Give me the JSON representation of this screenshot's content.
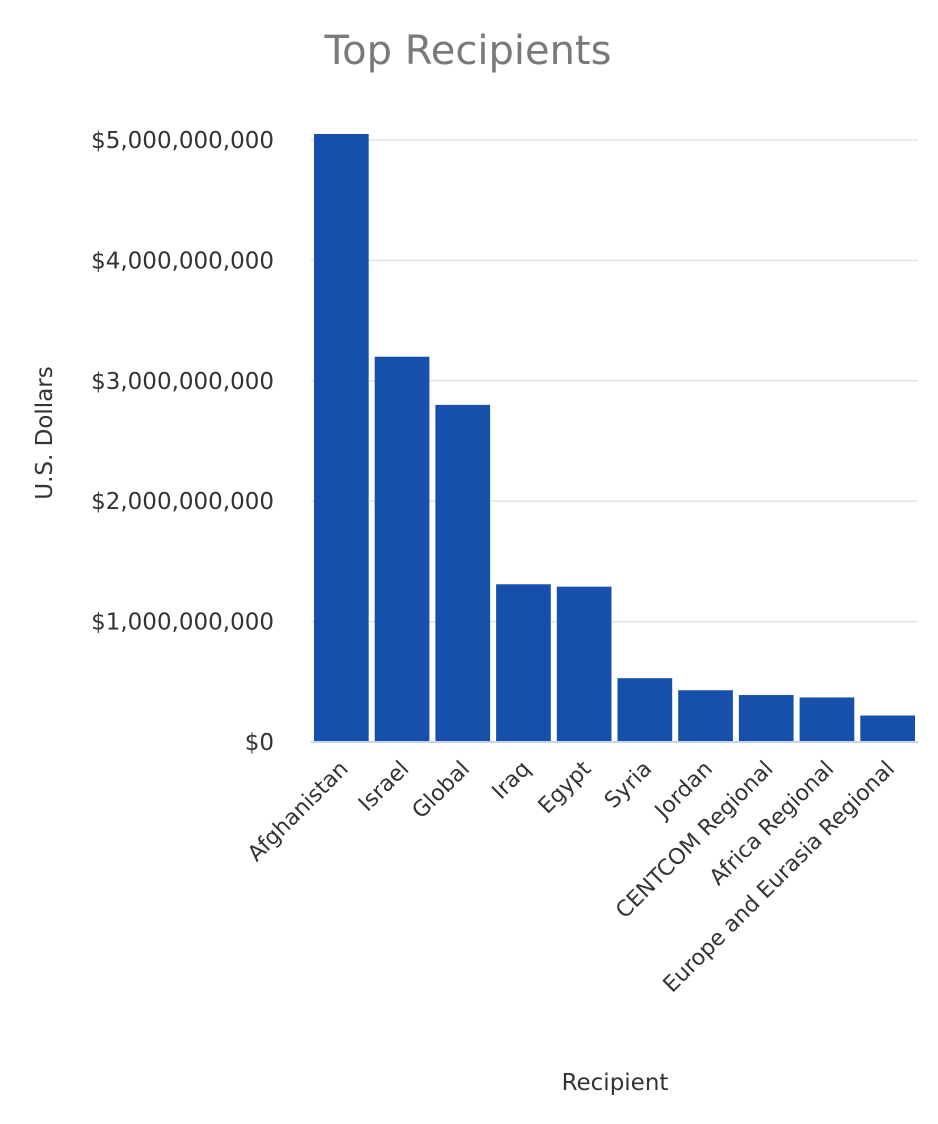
{
  "chart_data": {
    "type": "bar",
    "title": "Top Recipients",
    "xlabel": "Recipient",
    "ylabel": "U.S. Dollars",
    "categories": [
      "Afghanistan",
      "Israel",
      "Global",
      "Iraq",
      "Egypt",
      "Syria",
      "Jordan",
      "CENTCOM Regional",
      "Africa Regional",
      "Europe and Eurasia Regional"
    ],
    "values": [
      5050000000,
      3200000000,
      2800000000,
      1310000000,
      1290000000,
      530000000,
      430000000,
      390000000,
      370000000,
      220000000
    ],
    "ylim": [
      0,
      5000000000
    ],
    "yticks": [
      {
        "value": 0,
        "label": "$0"
      },
      {
        "value": 1000000000,
        "label": "$1,000,000,000"
      },
      {
        "value": 2000000000,
        "label": "$2,000,000,000"
      },
      {
        "value": 3000000000,
        "label": "$3,000,000,000"
      },
      {
        "value": 4000000000,
        "label": "$4,000,000,000"
      },
      {
        "value": 5000000000,
        "label": "$5,000,000,000"
      }
    ],
    "grid": true,
    "legend": "none",
    "bar_color": "#174fad"
  }
}
